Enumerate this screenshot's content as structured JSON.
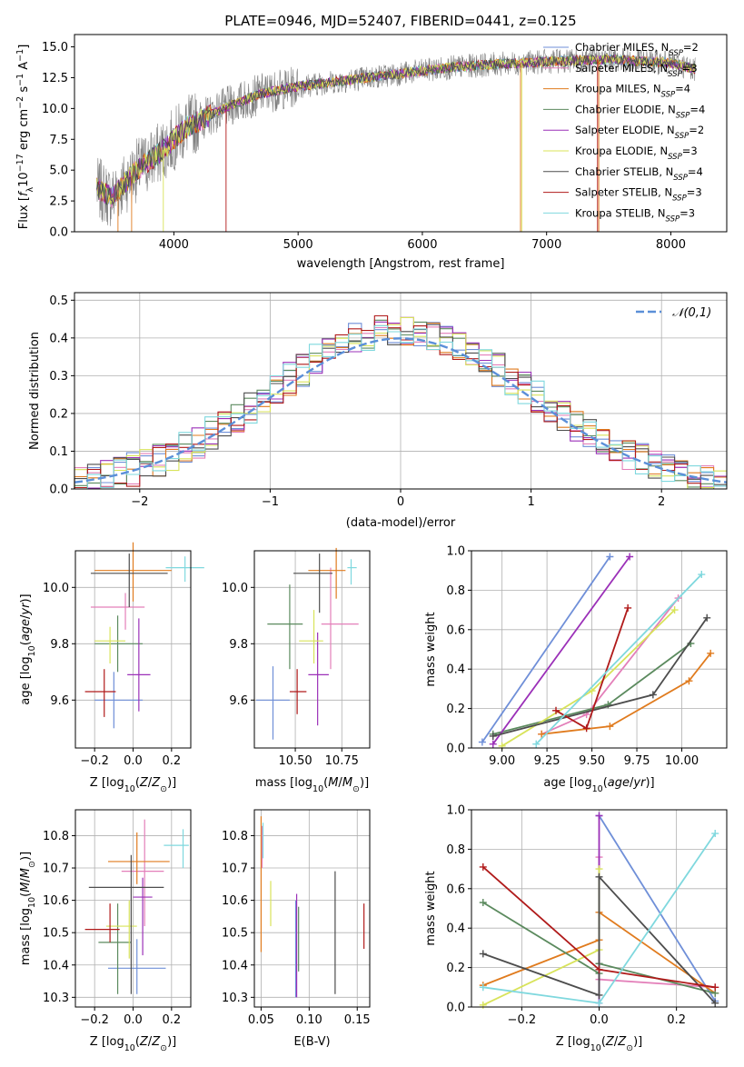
{
  "chart_data": [
    {
      "type": "line",
      "title": "PLATE=0946, MJD=52407, FIBERID=0441, z=0.125",
      "xlabel": "wavelength [Angstrom, rest frame]",
      "ylabel": "Flux [f_λ10^-17 erg cm^-2 s^-1 A^-1]",
      "xlim": [
        3200,
        8450
      ],
      "ylim": [
        0,
        16
      ],
      "xticks": [
        4000,
        5000,
        6000,
        7000,
        8000
      ],
      "yticks": [
        0.0,
        2.5,
        5.0,
        7.5,
        10.0,
        12.5,
        15.0
      ],
      "legend_position": "right",
      "continuum": {
        "x": [
          3380,
          3500,
          3700,
          3900,
          4100,
          4400,
          4700,
          5000,
          5400,
          5800,
          6200,
          6600,
          7000,
          7500,
          8000,
          8200
        ],
        "y": [
          3.5,
          2.8,
          5.0,
          6.5,
          8.5,
          10.0,
          11.2,
          11.8,
          12.3,
          12.8,
          13.3,
          13.6,
          13.8,
          14.0,
          13.7,
          13.2
        ]
      },
      "series": [
        {
          "name": "Chabrier MILES, N_SSP=2",
          "color": "#6f8fd8"
        },
        {
          "name": "Salpeter MILES, N_SSP=3",
          "color": "#e37fb9"
        },
        {
          "name": "Kroupa MILES, N_SSP=4",
          "color": "#e07b1e"
        },
        {
          "name": "Chabrier ELODIE, N_SSP=4",
          "color": "#5b8a5e"
        },
        {
          "name": "Salpeter ELODIE, N_SSP=2",
          "color": "#9b30b8"
        },
        {
          "name": "Kroupa ELODIE, N_SSP=3",
          "color": "#d8e35a"
        },
        {
          "name": "Chabrier STELIB, N_SSP=4",
          "color": "#4d4d4d"
        },
        {
          "name": "Salpeter STELIB, N_SSP=3",
          "color": "#b01a1a"
        },
        {
          "name": "Kroupa STELIB, N_SSP=3",
          "color": "#7fd8de"
        }
      ]
    },
    {
      "type": "histogram",
      "xlabel": "(data-model)/error",
      "ylabel": "Normed distribution",
      "xlim": [
        -2.5,
        2.5
      ],
      "ylim": [
        0,
        0.52
      ],
      "xticks": [
        -2,
        -1,
        0,
        1,
        2
      ],
      "yticks": [
        0.0,
        0.1,
        0.2,
        0.3,
        0.4,
        0.5
      ],
      "legend": "𝒩(0,1)",
      "legend_position": "top-right",
      "curve": {
        "name": "𝒩(0,1)",
        "color": "#5b8fd8",
        "style": "dashed"
      },
      "bins": [
        -2.5,
        2.5,
        50
      ]
    },
    {
      "type": "scatter",
      "xlabel": "Z [log10(Z/Z⊙)]",
      "ylabel": "age [log10(age/yr)]",
      "xlim": [
        -0.3,
        0.3
      ],
      "ylim": [
        9.43,
        10.13
      ],
      "xticks": [
        -0.2,
        0.0,
        0.2
      ],
      "yticks": [
        9.6,
        9.8,
        10.0
      ],
      "points": [
        {
          "x": -0.1,
          "y": 9.6,
          "xerr": [
            0.1,
            0.15
          ],
          "yerr": [
            0.1,
            0.1
          ],
          "color": "#6f8fd8"
        },
        {
          "x": -0.04,
          "y": 9.93,
          "xerr": [
            0.18,
            0.1
          ],
          "yerr": [
            0.08,
            0.05
          ],
          "color": "#e37fb9"
        },
        {
          "x": 0.0,
          "y": 10.06,
          "xerr": [
            0.2,
            0.2
          ],
          "yerr": [
            0.11,
            0.1
          ],
          "color": "#e07b1e"
        },
        {
          "x": -0.08,
          "y": 9.8,
          "xerr": [
            0.12,
            0.13
          ],
          "yerr": [
            0.1,
            0.1
          ],
          "color": "#5b8a5e"
        },
        {
          "x": 0.03,
          "y": 9.69,
          "xerr": [
            0.06,
            0.06
          ],
          "yerr": [
            0.13,
            0.2
          ],
          "color": "#9b30b8"
        },
        {
          "x": -0.12,
          "y": 9.81,
          "xerr": [
            0.08,
            0.08
          ],
          "yerr": [
            0.08,
            0.05
          ],
          "color": "#d8e35a"
        },
        {
          "x": -0.02,
          "y": 10.05,
          "xerr": [
            0.2,
            0.2
          ],
          "yerr": [
            0.12,
            0.07
          ],
          "color": "#4d4d4d"
        },
        {
          "x": -0.15,
          "y": 9.63,
          "xerr": [
            0.1,
            0.06
          ],
          "yerr": [
            0.09,
            0.08
          ],
          "color": "#b01a1a"
        },
        {
          "x": 0.27,
          "y": 10.07,
          "xerr": [
            0.1,
            0.1
          ],
          "yerr": [
            0.05,
            0.04
          ],
          "color": "#7fd8de"
        }
      ]
    },
    {
      "type": "scatter",
      "xlabel": "mass [log10(M/M⊙)]",
      "ylabel": "",
      "xlim": [
        10.28,
        10.9
      ],
      "ylim": [
        9.43,
        10.13
      ],
      "xticks": [
        10.5,
        10.75
      ],
      "yticks": [
        9.6,
        9.8,
        10.0
      ],
      "points": [
        {
          "x": 10.38,
          "y": 9.6,
          "xerr": [
            0.09,
            0.09
          ],
          "yerr": [
            0.14,
            0.12
          ],
          "color": "#6f8fd8"
        },
        {
          "x": 10.69,
          "y": 9.87,
          "xerr": [
            0.05,
            0.15
          ],
          "yerr": [
            0.16,
            0.2
          ],
          "color": "#e37fb9"
        },
        {
          "x": 10.72,
          "y": 10.06,
          "xerr": [
            0.15,
            0.05
          ],
          "yerr": [
            0.1,
            0.08
          ],
          "color": "#e07b1e"
        },
        {
          "x": 10.47,
          "y": 9.87,
          "xerr": [
            0.12,
            0.07
          ],
          "yerr": [
            0.16,
            0.14
          ],
          "color": "#5b8a5e"
        },
        {
          "x": 10.62,
          "y": 9.69,
          "xerr": [
            0.05,
            0.06
          ],
          "yerr": [
            0.18,
            0.15
          ],
          "color": "#9b30b8"
        },
        {
          "x": 10.6,
          "y": 9.81,
          "xerr": [
            0.08,
            0.05
          ],
          "yerr": [
            0.08,
            0.11
          ],
          "color": "#d8e35a"
        },
        {
          "x": 10.63,
          "y": 10.05,
          "xerr": [
            0.14,
            0.07
          ],
          "yerr": [
            0.14,
            0.07
          ],
          "color": "#4d4d4d"
        },
        {
          "x": 10.51,
          "y": 9.63,
          "xerr": [
            0.04,
            0.05
          ],
          "yerr": [
            0.08,
            0.08
          ],
          "color": "#b01a1a"
        },
        {
          "x": 10.8,
          "y": 10.07,
          "xerr": [
            0.02,
            0.03
          ],
          "yerr": [
            0.06,
            0.03
          ],
          "color": "#7fd8de"
        }
      ]
    },
    {
      "type": "line",
      "xlabel": "age [log10(age/yr)]",
      "ylabel": "mass weight",
      "xlim": [
        8.83,
        10.25
      ],
      "ylim": [
        0.0,
        1.0
      ],
      "xticks": [
        9.0,
        9.25,
        9.5,
        9.75,
        10.0
      ],
      "yticks": [
        0.0,
        0.2,
        0.4,
        0.6,
        0.8,
        1.0
      ],
      "series": [
        {
          "color": "#6f8fd8",
          "x": [
            8.89,
            9.6
          ],
          "y": [
            0.03,
            0.97
          ]
        },
        {
          "color": "#e37fb9",
          "x": [
            9.22,
            9.47,
            9.98
          ],
          "y": [
            0.07,
            0.17,
            0.76
          ]
        },
        {
          "color": "#e07b1e",
          "x": [
            9.22,
            9.6,
            10.04,
            10.16
          ],
          "y": [
            0.07,
            0.11,
            0.34,
            0.48
          ]
        },
        {
          "color": "#5b8a5e",
          "x": [
            8.95,
            9.59,
            10.05
          ],
          "y": [
            0.07,
            0.22,
            0.53
          ]
        },
        {
          "color": "#9b30b8",
          "x": [
            8.95,
            9.71
          ],
          "y": [
            0.02,
            0.97
          ]
        },
        {
          "color": "#d8e35a",
          "x": [
            9.0,
            9.5,
            9.96
          ],
          "y": [
            0.01,
            0.29,
            0.7
          ]
        },
        {
          "color": "#4d4d4d",
          "x": [
            8.95,
            9.84,
            10.14
          ],
          "y": [
            0.06,
            0.27,
            0.66
          ]
        },
        {
          "color": "#b01a1a",
          "x": [
            9.3,
            9.47,
            9.7
          ],
          "y": [
            0.19,
            0.1,
            0.71
          ]
        },
        {
          "color": "#7fd8de",
          "x": [
            9.19,
            10.11
          ],
          "y": [
            0.02,
            0.88
          ]
        }
      ]
    },
    {
      "type": "scatter",
      "xlabel": "Z [log10(Z/Z⊙)]",
      "ylabel": "mass [log10(M/M⊙)]",
      "xlim": [
        -0.3,
        0.3
      ],
      "ylim": [
        10.27,
        10.88
      ],
      "xticks": [
        -0.2,
        0.0,
        0.2
      ],
      "yticks": [
        10.3,
        10.4,
        10.5,
        10.6,
        10.7,
        10.8
      ],
      "points": [
        {
          "x": 0.02,
          "y": 10.39,
          "xerr": [
            0.15,
            0.15
          ],
          "yerr": [
            0.08,
            0.09
          ],
          "color": "#6f8fd8"
        },
        {
          "x": 0.06,
          "y": 10.69,
          "xerr": [
            0.12,
            0.1
          ],
          "yerr": [
            0.17,
            0.16
          ],
          "color": "#e37fb9"
        },
        {
          "x": 0.02,
          "y": 10.72,
          "xerr": [
            0.15,
            0.17
          ],
          "yerr": [
            0.07,
            0.09
          ],
          "color": "#e07b1e"
        },
        {
          "x": -0.08,
          "y": 10.47,
          "xerr": [
            0.1,
            0.07
          ],
          "yerr": [
            0.16,
            0.12
          ],
          "color": "#5b8a5e"
        },
        {
          "x": 0.05,
          "y": 10.61,
          "xerr": [
            0.05,
            0.05
          ],
          "yerr": [
            0.18,
            0.06
          ],
          "color": "#9b30b8"
        },
        {
          "x": -0.02,
          "y": 10.52,
          "xerr": [
            0.12,
            0.04
          ],
          "yerr": [
            0.1,
            0.08
          ],
          "color": "#d8e35a"
        },
        {
          "x": -0.01,
          "y": 10.64,
          "xerr": [
            0.22,
            0.17
          ],
          "yerr": [
            0.33,
            0.1
          ],
          "color": "#4d4d4d"
        },
        {
          "x": -0.12,
          "y": 10.51,
          "xerr": [
            0.13,
            0.05
          ],
          "yerr": [
            0.04,
            0.08
          ],
          "color": "#b01a1a"
        },
        {
          "x": 0.26,
          "y": 10.77,
          "xerr": [
            0.1,
            0.03
          ],
          "yerr": [
            0.07,
            0.05
          ],
          "color": "#7fd8de"
        }
      ]
    },
    {
      "type": "scatter",
      "xlabel": "E(B-V)",
      "ylabel": "",
      "xlim": [
        0.043,
        0.163
      ],
      "ylim": [
        10.27,
        10.88
      ],
      "xticks": [
        0.05,
        0.1,
        0.15
      ],
      "yticks": [
        10.3,
        10.4,
        10.5,
        10.6,
        10.7,
        10.8
      ],
      "points": [
        {
          "x": 0.05,
          "y": 10.64,
          "yerr": [
            0.2,
            0.22
          ],
          "color": "#e07b1e"
        },
        {
          "x": 0.051,
          "y": 10.77,
          "yerr": [
            0.07,
            0.06
          ],
          "color": "#e37fb9"
        },
        {
          "x": 0.052,
          "y": 10.79,
          "yerr": [
            0.06,
            0.05
          ],
          "color": "#7fd8de"
        },
        {
          "x": 0.06,
          "y": 10.59,
          "yerr": [
            0.07,
            0.07
          ],
          "color": "#d8e35a"
        },
        {
          "x": 0.086,
          "y": 10.47,
          "yerr": [
            0.17,
            0.13
          ],
          "color": "#6f8fd8"
        },
        {
          "x": 0.087,
          "y": 10.46,
          "yerr": [
            0.16,
            0.16
          ],
          "color": "#9b30b8"
        },
        {
          "x": 0.089,
          "y": 10.48,
          "yerr": [
            0.1,
            0.1
          ],
          "color": "#5b8a5e"
        },
        {
          "x": 0.127,
          "y": 10.5,
          "yerr": [
            0.19,
            0.19
          ],
          "color": "#4d4d4d"
        },
        {
          "x": 0.157,
          "y": 10.52,
          "yerr": [
            0.07,
            0.07
          ],
          "color": "#b01a1a"
        }
      ]
    },
    {
      "type": "line",
      "xlabel": "Z [log10(Z/Z⊙)]",
      "ylabel": "mass weight",
      "xlim": [
        -0.33,
        0.33
      ],
      "ylim": [
        0.0,
        1.0
      ],
      "xticks": [
        -0.2,
        0.0,
        0.2
      ],
      "yticks": [
        0.0,
        0.2,
        0.4,
        0.6,
        0.8,
        1.0
      ],
      "series": [
        {
          "color": "#6f8fd8",
          "x": [
            0.0,
            0.3
          ],
          "y": [
            0.97,
            0.03
          ]
        },
        {
          "color": "#e37fb9",
          "x": [
            0.0,
            0.0,
            0.3
          ],
          "y": [
            0.76,
            0.14,
            0.1
          ]
        },
        {
          "color": "#e07b1e",
          "x": [
            -0.3,
            0.0,
            0.0,
            0.3
          ],
          "y": [
            0.11,
            0.34,
            0.48,
            0.07
          ]
        },
        {
          "color": "#5b8a5e",
          "x": [
            -0.3,
            0.0,
            0.0,
            0.3
          ],
          "y": [
            0.53,
            0.17,
            0.22,
            0.07
          ]
        },
        {
          "color": "#9b30b8",
          "x": [
            0.0,
            0.0
          ],
          "y": [
            0.97,
            0.02
          ]
        },
        {
          "color": "#d8e35a",
          "x": [
            -0.3,
            0.0,
            0.0
          ],
          "y": [
            0.01,
            0.29,
            0.7
          ]
        },
        {
          "color": "#4d4d4d",
          "x": [
            -0.3,
            0.0,
            0.0,
            0.3
          ],
          "y": [
            0.27,
            0.06,
            0.66,
            0.02
          ]
        },
        {
          "color": "#b01a1a",
          "x": [
            -0.3,
            0.0,
            0.3
          ],
          "y": [
            0.71,
            0.19,
            0.1
          ]
        },
        {
          "color": "#7fd8de",
          "x": [
            -0.3,
            0.0,
            0.3
          ],
          "y": [
            0.1,
            0.02,
            0.88
          ]
        }
      ]
    }
  ]
}
